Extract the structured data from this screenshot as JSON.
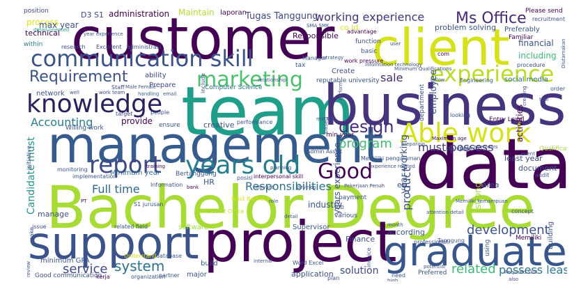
{
  "words": [
    {
      "text": "customer",
      "color": "#440154"
    },
    {
      "text": "client",
      "color": "#d5e21a"
    },
    {
      "text": "team",
      "color": "#1f9e89"
    },
    {
      "text": "business",
      "color": "#46337e"
    },
    {
      "text": "management",
      "color": "#365c8d"
    },
    {
      "text": "data",
      "color": "#440154"
    },
    {
      "text": "Bachelor Degree",
      "color": "#a8db34"
    },
    {
      "text": "support",
      "color": "#3b528b"
    },
    {
      "text": "project",
      "color": "#440154"
    },
    {
      "text": "graduates",
      "color": "#39568c"
    },
    {
      "text": "communication skill",
      "color": "#3b528b"
    },
    {
      "text": "knowledge",
      "color": "#2d1e5e"
    },
    {
      "text": "marketing",
      "color": "#4ac16d"
    },
    {
      "text": "experience",
      "color": "#b8de29"
    },
    {
      "text": "Able work",
      "color": "#d5e21a"
    },
    {
      "text": "report",
      "color": "#3e4a89"
    },
    {
      "text": "years old",
      "color": "#277f8e"
    },
    {
      "text": "Good",
      "color": "#440154"
    },
    {
      "text": "design",
      "color": "#472d7b"
    },
    {
      "text": "Requirement",
      "color": "#3b528b"
    },
    {
      "text": "Ms Office",
      "color": "#482878"
    },
    {
      "text": "working experience",
      "color": "#46327e"
    },
    {
      "text": "system",
      "color": "#2c718e"
    },
    {
      "text": "service",
      "color": "#3e4989"
    },
    {
      "text": "development",
      "color": "#3b528b"
    },
    {
      "text": "related",
      "color": "#3aba76"
    },
    {
      "text": "possess least",
      "color": "#2a788e"
    },
    {
      "text": "Responsibilities",
      "color": "#2c718e"
    },
    {
      "text": "Full time",
      "color": "#31688e"
    },
    {
      "text": "Accounting",
      "color": "#287c8e"
    },
    {
      "text": "must possess",
      "color": "#443983"
    },
    {
      "text": "program",
      "color": "#3dbc74"
    },
    {
      "text": "product",
      "color": "#3b528b"
    },
    {
      "text": "sale",
      "color": "#472c7a"
    },
    {
      "text": "Candidate must",
      "color": "#20928c"
    },
    {
      "text": "solution",
      "color": "#3e4989"
    },
    {
      "text": "Tugas Tanggung",
      "color": "#404688"
    },
    {
      "text": "D3 S1",
      "color": "#404688"
    },
    {
      "text": "administration",
      "color": "#440154"
    },
    {
      "text": "Maintain",
      "color": "#b5de2b"
    },
    {
      "text": "laporan",
      "color": "#440154"
    },
    {
      "text": "position",
      "color": "#404688"
    },
    {
      "text": "detail oriented",
      "color": "#22a785"
    },
    {
      "text": "Please send",
      "color": "#440154"
    },
    {
      "text": "recruitment",
      "color": "#3b528b"
    },
    {
      "text": "process",
      "color": "#dde318"
    },
    {
      "text": "max year",
      "color": "#3b528b"
    },
    {
      "text": "technical",
      "color": "#440154"
    },
    {
      "text": "within",
      "color": "#287d8e"
    },
    {
      "text": "research",
      "color": "#3e4a89"
    },
    {
      "text": "Excellent",
      "color": "#3e4989"
    },
    {
      "text": "administrasi",
      "color": "#3b528b"
    },
    {
      "text": "Manager",
      "color": "#3b528b"
    },
    {
      "text": "co id",
      "color": "#d8e219"
    },
    {
      "text": "Responsible",
      "color": "#440154"
    },
    {
      "text": "tax",
      "color": "#3b528b"
    },
    {
      "text": "ability",
      "color": "#404688"
    },
    {
      "text": "Prepare",
      "color": "#3e4989"
    },
    {
      "text": "network",
      "color": "#3b528b"
    },
    {
      "text": "work team",
      "color": "#3e4989"
    },
    {
      "text": "handling",
      "color": "#31688e"
    },
    {
      "text": "email",
      "color": "#3b528b"
    },
    {
      "text": "Staff",
      "color": "#3e4989"
    },
    {
      "text": "Willing work",
      "color": "#3b528b"
    },
    {
      "text": "provide",
      "color": "#440154"
    },
    {
      "text": "creative",
      "color": "#3b528b"
    },
    {
      "text": "ensure",
      "color": "#3b528b"
    },
    {
      "text": "target",
      "color": "#3e4989"
    },
    {
      "text": "people",
      "color": "#3b528b"
    },
    {
      "text": "Computer Science",
      "color": "#2c718e"
    },
    {
      "text": "SMA SMK",
      "color": "#3b528b"
    },
    {
      "text": "problem solving",
      "color": "#3b528b"
    },
    {
      "text": "Preferably",
      "color": "#3b528b"
    },
    {
      "text": "Familiar",
      "color": "#440154"
    },
    {
      "text": "function",
      "color": "#3b528b"
    },
    {
      "text": "advantage",
      "color": "#440154"
    },
    {
      "text": "basic",
      "color": "#3b528b"
    },
    {
      "text": "com",
      "color": "#440154"
    },
    {
      "text": "financial",
      "color": "#3b528b"
    },
    {
      "text": "including",
      "color": "#3aba76"
    },
    {
      "text": "procedure",
      "color": "#3b528b"
    },
    {
      "text": "Create",
      "color": "#3e4989"
    },
    {
      "text": "work pressure",
      "color": "#440154"
    },
    {
      "text": "reputable university",
      "color": "#3b528b"
    },
    {
      "text": "Engineering",
      "color": "#3b528b"
    },
    {
      "text": "social media",
      "color": "#31688e"
    },
    {
      "text": "operation",
      "color": "#2a788e"
    },
    {
      "text": "employee",
      "color": "#3b528b"
    },
    {
      "text": "activities",
      "color": "#440154"
    },
    {
      "text": "Entry Level",
      "color": "#440154"
    },
    {
      "text": "looking",
      "color": "#3b528b"
    },
    {
      "text": "Qualification",
      "color": "#a5db36"
    },
    {
      "text": "year working",
      "color": "#3b528b"
    },
    {
      "text": "Maximum age",
      "color": "#440154"
    },
    {
      "text": "age years",
      "color": "#3e4989"
    },
    {
      "text": "least year",
      "color": "#3e4989"
    },
    {
      "text": "document",
      "color": "#3b528b"
    },
    {
      "text": "audit",
      "color": "#3b528b"
    },
    {
      "text": "event",
      "color": "#3b528b"
    },
    {
      "text": "Able",
      "color": "#3b528b"
    },
    {
      "text": "standard",
      "color": "#3b528b"
    },
    {
      "text": "min year",
      "color": "#440154"
    },
    {
      "text": "Memiliki pengalaman",
      "color": "#3b528b"
    },
    {
      "text": "Admin Assist",
      "color": "#3b528b"
    },
    {
      "text": "interpersonal skill",
      "color": "#440154"
    },
    {
      "text": "Minimum year",
      "color": "#31688e"
    },
    {
      "text": "Bertanggung",
      "color": "#3b528b"
    },
    {
      "text": "monitoring",
      "color": "#3b528b"
    },
    {
      "text": "implementation",
      "color": "#3b528b"
    },
    {
      "text": "training",
      "color": "#440154"
    },
    {
      "text": "HR",
      "color": "#3b528b"
    },
    {
      "text": "Information",
      "color": "#3b528b"
    },
    {
      "text": "bank",
      "color": "#440154"
    },
    {
      "text": "posisi",
      "color": "#3b528b"
    },
    {
      "text": "relevant",
      "color": "#3b528b"
    },
    {
      "text": "develop",
      "color": "#3b528b"
    },
    {
      "text": "bidang",
      "color": "#3b528b"
    },
    {
      "text": "years experience",
      "color": "#3b528b"
    },
    {
      "text": "Pekerjaan Penuh",
      "color": "#3e4989"
    },
    {
      "text": "etc",
      "color": "#3b528b"
    },
    {
      "text": "strong",
      "color": "#a0da39"
    },
    {
      "text": "area",
      "color": "#3b528b"
    },
    {
      "text": "payment",
      "color": "#3b528b"
    },
    {
      "text": "industry",
      "color": "#3b528b"
    },
    {
      "text": "Job",
      "color": "#3b528b"
    },
    {
      "text": "various",
      "color": "#3b528b"
    },
    {
      "text": "manage",
      "color": "#3b528b"
    },
    {
      "text": "PT",
      "color": "#440154"
    },
    {
      "text": "S1 jurusan",
      "color": "#3b528b"
    },
    {
      "text": "least Bachelor",
      "color": "#d5e21a"
    },
    {
      "text": "Microsoft Office",
      "color": "#b5de2b"
    },
    {
      "text": "related field",
      "color": "#3b528b"
    },
    {
      "text": "software",
      "color": "#a0da39"
    },
    {
      "text": "Supervisor",
      "color": "#3b528b"
    },
    {
      "text": "according",
      "color": "#3b528b"
    },
    {
      "text": "month",
      "color": "#3b528b"
    },
    {
      "text": "attention detail",
      "color": "#3b528b"
    },
    {
      "text": "concept",
      "color": "#3b528b"
    },
    {
      "text": "Memiliki kemampuan",
      "color": "#3b528b"
    },
    {
      "text": "building",
      "color": "#3b528b"
    },
    {
      "text": "issue",
      "color": "#3b528b"
    },
    {
      "text": "make",
      "color": "#3b528b"
    },
    {
      "text": "minimum GPA",
      "color": "#3b528b"
    },
    {
      "text": "Understand",
      "color": "#dde318"
    },
    {
      "text": "database",
      "color": "#3b528b"
    },
    {
      "text": "build",
      "color": "#3b528b"
    },
    {
      "text": "Finance",
      "color": "#3b528b"
    },
    {
      "text": "professional",
      "color": "#3b528b"
    },
    {
      "text": "Tanggung",
      "color": "#3b528b"
    },
    {
      "text": "Jakarta Indonesia",
      "color": "#3b528b"
    },
    {
      "text": "analysis",
      "color": "#3b528b"
    },
    {
      "text": "using",
      "color": "#3b528b"
    },
    {
      "text": "Memiliki",
      "color": "#440154"
    },
    {
      "text": "Good communication",
      "color": "#3b528b"
    },
    {
      "text": "kerja",
      "color": "#440154"
    },
    {
      "text": "organization",
      "color": "#3b528b"
    },
    {
      "text": "partner",
      "color": "#3b528b"
    },
    {
      "text": "major",
      "color": "#3b528b"
    },
    {
      "text": "application",
      "color": "#3b528b"
    },
    {
      "text": "internal",
      "color": "#3b528b"
    },
    {
      "text": "Word Excel",
      "color": "#3b528b"
    },
    {
      "text": "Preferred",
      "color": "#3b528b"
    },
    {
      "text": "plan",
      "color": "#3b528b"
    },
    {
      "text": "need",
      "color": "#3b528b"
    },
    {
      "text": "high",
      "color": "#3b528b"
    },
    {
      "text": "Required Skill",
      "color": "#3b528b"
    },
    {
      "text": "detail",
      "color": "#3b528b"
    },
    {
      "text": "experience related",
      "color": "#3b528b"
    },
    {
      "text": "follow",
      "color": "#3b528b"
    },
    {
      "text": "planning",
      "color": "#3b528b"
    },
    {
      "text": "preparing",
      "color": "#3b528b"
    },
    {
      "text": "initiative",
      "color": "#3b528b"
    },
    {
      "text": "min D3",
      "color": "#3b528b"
    },
    {
      "text": "based",
      "color": "#3b528b"
    },
    {
      "text": "well",
      "color": "#3b528b"
    },
    {
      "text": "user",
      "color": "#3b528b"
    },
    {
      "text": "Minimum Qualifications",
      "color": "#3b528b"
    },
    {
      "text": "creating",
      "color": "#3b528b"
    },
    {
      "text": "tool",
      "color": "#3b528b"
    },
    {
      "text": "also",
      "color": "#3b528b"
    },
    {
      "text": "order",
      "color": "#3b528b"
    },
    {
      "text": "invoice",
      "color": "#3b528b"
    },
    {
      "text": "potential",
      "color": "#3b528b"
    },
    {
      "text": "role",
      "color": "#3b528b"
    },
    {
      "text": "year experience",
      "color": "#3b528b"
    },
    {
      "text": "strategy",
      "color": "#3b528b"
    },
    {
      "text": "include",
      "color": "#3b528b"
    },
    {
      "text": "relationship",
      "color": "#3b528b"
    },
    {
      "text": "Perform",
      "color": "#3b528b"
    },
    {
      "text": "department",
      "color": "#3b528b"
    },
    {
      "text": "review",
      "color": "#3b528b"
    },
    {
      "text": "performance",
      "color": "#3b528b"
    },
    {
      "text": "Information technology",
      "color": "#3b528b"
    },
    {
      "text": "Diutamakan",
      "color": "#3b528b"
    },
    {
      "text": "Male Female",
      "color": "#3b528b"
    }
  ]
}
